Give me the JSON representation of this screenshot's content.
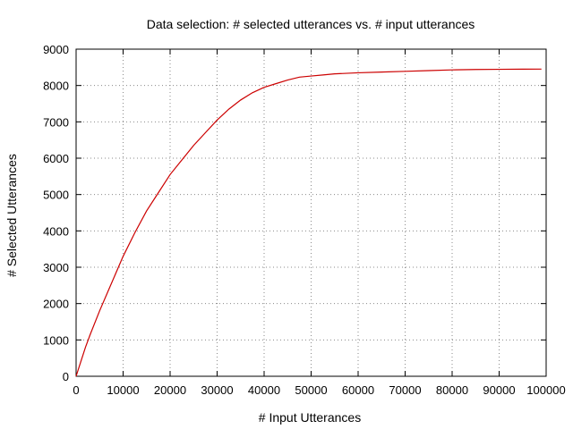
{
  "chart_data": {
    "type": "line",
    "title": "Data selection: # selected utterances vs. # input utterances",
    "xlabel": "# Input Utterances",
    "ylabel": "# Selected Utterances",
    "xlim": [
      0,
      100000
    ],
    "ylim": [
      0,
      9000
    ],
    "xticks": [
      "0",
      "10000",
      "20000",
      "30000",
      "40000",
      "50000",
      "60000",
      "70000",
      "80000",
      "90000",
      "100000"
    ],
    "yticks": [
      "0",
      "1000",
      "2000",
      "3000",
      "4000",
      "5000",
      "6000",
      "7000",
      "8000",
      "9000"
    ],
    "grid": true,
    "line_color": "#cc0000",
    "series": [
      {
        "x": [
          0,
          1000,
          2000,
          3000,
          5000,
          7000,
          10000,
          12500,
          15000,
          17500,
          20000,
          22500,
          25000,
          27500,
          30000,
          32500,
          35000,
          37500,
          40000,
          42500,
          45000,
          47500,
          50000,
          52500,
          55000,
          60000,
          65000,
          70000,
          75000,
          80000,
          85000,
          90000,
          95000,
          99000
        ],
        "y": [
          0,
          400,
          800,
          1150,
          1800,
          2400,
          3300,
          3950,
          4550,
          5050,
          5550,
          5950,
          6350,
          6700,
          7050,
          7350,
          7600,
          7800,
          7950,
          8050,
          8150,
          8230,
          8260,
          8290,
          8320,
          8350,
          8370,
          8390,
          8410,
          8430,
          8440,
          8445,
          8450,
          8452
        ]
      }
    ]
  }
}
